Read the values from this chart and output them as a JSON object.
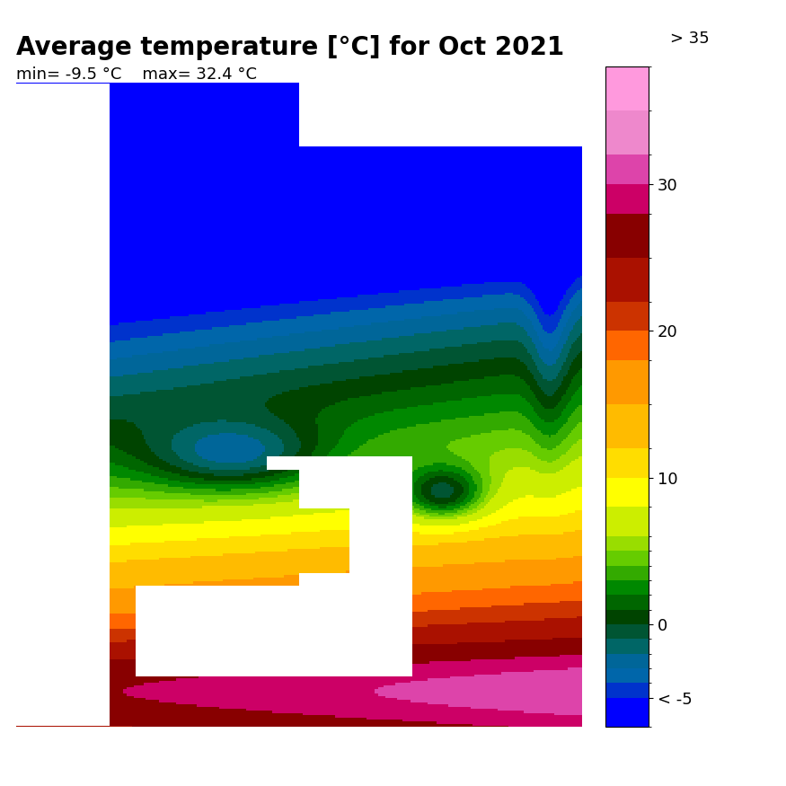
{
  "title": "Average temperature [°C] for Oct 2021",
  "min_label": "min= -9.5 °C",
  "max_label": "max= 32.4 °C",
  "colorbar_ticks": [
    -5,
    0,
    10,
    20,
    30
  ],
  "colorbar_tick_labels": [
    "< -5",
    "0",
    "10",
    "20",
    "30"
  ],
  "colorbar_top_label": "> 35",
  "colorbar_vmin": -7,
  "colorbar_vmax": 38,
  "background_color": "#ffffff",
  "title_fontsize": 20,
  "subtitle_fontsize": 13,
  "colorbar_colors": [
    "#0000ff",
    "#0033cc",
    "#0066aa",
    "#006699",
    "#006666",
    "#005533",
    "#004400",
    "#006600",
    "#008800",
    "#33aa00",
    "#66cc00",
    "#99dd00",
    "#ccee00",
    "#ffff00",
    "#ffdd00",
    "#ffbb00",
    "#ff9900",
    "#ff6600",
    "#cc3300",
    "#aa1100",
    "#880000",
    "#cc0066",
    "#dd44aa",
    "#ee88cc",
    "#ff99dd"
  ],
  "colorbar_boundaries": [
    -7,
    -5,
    -4,
    -3,
    -2,
    -1,
    0,
    1,
    2,
    3,
    4,
    5,
    6,
    8,
    10,
    12,
    15,
    18,
    20,
    22,
    25,
    28,
    30,
    32,
    35,
    38
  ]
}
